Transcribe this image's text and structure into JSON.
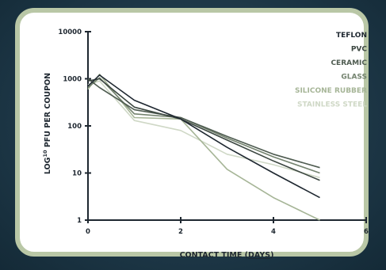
{
  "chart_data": {
    "type": "line",
    "xlabel_prefix": "CONTACT TIME (",
    "xlabel_unit": "DAYS",
    "xlabel_suffix": ")",
    "ylabel_main": "LOG",
    "ylabel_sup": "10",
    "ylabel_rest": " PFU PER COUPON",
    "xlim": [
      0,
      6
    ],
    "ylim": [
      1,
      10000
    ],
    "y_scale": "log",
    "x_ticks": [
      "0",
      "2",
      "4",
      "6"
    ],
    "y_ticks": [
      "10000",
      "1000",
      "100",
      "10",
      "1"
    ],
    "grid": false,
    "legend_position": "top-right",
    "series": [
      {
        "name": "TEFLON",
        "color": "#1e2730",
        "x": [
          0,
          0.25,
          1,
          2,
          3,
          4,
          5
        ],
        "y": [
          700,
          1200,
          350,
          140,
          35,
          10,
          3
        ]
      },
      {
        "name": "PVC",
        "color": "#3c4741",
        "x": [
          0,
          0.25,
          1,
          2,
          3,
          4,
          5
        ],
        "y": [
          900,
          1000,
          250,
          140,
          50,
          18,
          7
        ]
      },
      {
        "name": "CERAMIC",
        "color": "#4f5c51",
        "x": [
          0,
          0.25,
          1,
          2,
          3,
          4,
          5
        ],
        "y": [
          1000,
          650,
          220,
          150,
          60,
          25,
          13
        ]
      },
      {
        "name": "GLASS",
        "color": "#74836f",
        "x": [
          0,
          0.25,
          1,
          2,
          3,
          4,
          5
        ],
        "y": [
          650,
          1050,
          180,
          150,
          55,
          22,
          10
        ]
      },
      {
        "name": "SILICONE RUBBER",
        "color": "#a6b597",
        "x": [
          0,
          0.25,
          1,
          2,
          3,
          4,
          5
        ],
        "y": [
          600,
          1250,
          150,
          140,
          12,
          3,
          1
        ]
      },
      {
        "name": "STAINLESS STEEL",
        "color": "#cfd8c6",
        "x": [
          0,
          0.25,
          1,
          2,
          3,
          4,
          5
        ],
        "y": [
          750,
          900,
          130,
          80,
          25,
          15,
          8
        ]
      }
    ]
  }
}
